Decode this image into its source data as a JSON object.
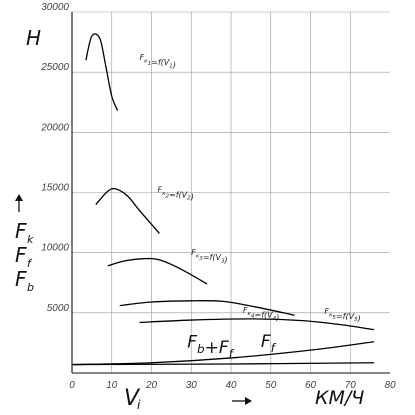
{
  "chart_data": {
    "type": "line",
    "y_unit": "H",
    "x_unit": "КМ/Ч",
    "x_symbol": "V",
    "x_symbol_sub": "i",
    "y_symbols": [
      {
        "main": "F",
        "sub": "k"
      },
      {
        "main": "F",
        "sub": "f"
      },
      {
        "main": "F",
        "sub": "b"
      }
    ],
    "xlim": [
      0,
      80
    ],
    "ylim": [
      0,
      30000
    ],
    "x_ticks": [
      0,
      10,
      20,
      30,
      40,
      50,
      60,
      70,
      80
    ],
    "y_ticks": [
      5000,
      10000,
      15000,
      20000,
      25000,
      30000
    ],
    "grid": true,
    "series": [
      {
        "name": "Fк1=f(V1)",
        "x": [
          3.5,
          5,
          7,
          8.5,
          10,
          11.5
        ],
        "y": [
          26000,
          28000,
          27800,
          25500,
          23000,
          21800
        ]
      },
      {
        "name": "Fк2=f(V2)",
        "x": [
          6,
          9,
          11,
          14,
          17,
          22
        ],
        "y": [
          14000,
          15100,
          15300,
          14700,
          13500,
          11600
        ]
      },
      {
        "name": "Fк3=f(V3)",
        "x": [
          9,
          13,
          18,
          22,
          27,
          34
        ],
        "y": [
          8900,
          9300,
          9500,
          9400,
          8700,
          7400
        ]
      },
      {
        "name": "Fк4=f(V4)",
        "x": [
          12,
          20,
          30,
          38,
          46,
          56
        ],
        "y": [
          5600,
          5900,
          6000,
          5950,
          5500,
          4800
        ]
      },
      {
        "name": "Fк5=f(V5)",
        "x": [
          17,
          30,
          45,
          58,
          68,
          76
        ],
        "y": [
          4200,
          4400,
          4500,
          4350,
          4000,
          3600
        ]
      },
      {
        "name": "Fb+Ff",
        "x": [
          0,
          20,
          40,
          60,
          76
        ],
        "y": [
          700,
          850,
          1250,
          1900,
          2600
        ]
      },
      {
        "name": "Ff",
        "x": [
          0,
          40,
          76
        ],
        "y": [
          700,
          750,
          850
        ]
      }
    ],
    "annotations": [
      {
        "text": "Fк1=f(V1)",
        "x": 17,
        "y": 26000
      },
      {
        "text": "Fк2=f(V2)",
        "x": 21.5,
        "y": 15000
      },
      {
        "text": "Fк3=f(V3)",
        "x": 30,
        "y": 9800
      },
      {
        "text": "Fк4=f(V4)",
        "x": 43,
        "y": 5000
      },
      {
        "text": "Fк5=f(V5)",
        "x": 63.5,
        "y": 4900
      },
      {
        "text": "Fb+Ff",
        "x": 29,
        "y": 2100
      },
      {
        "text": "Ff",
        "x": 47.5,
        "y": 2150
      }
    ]
  }
}
